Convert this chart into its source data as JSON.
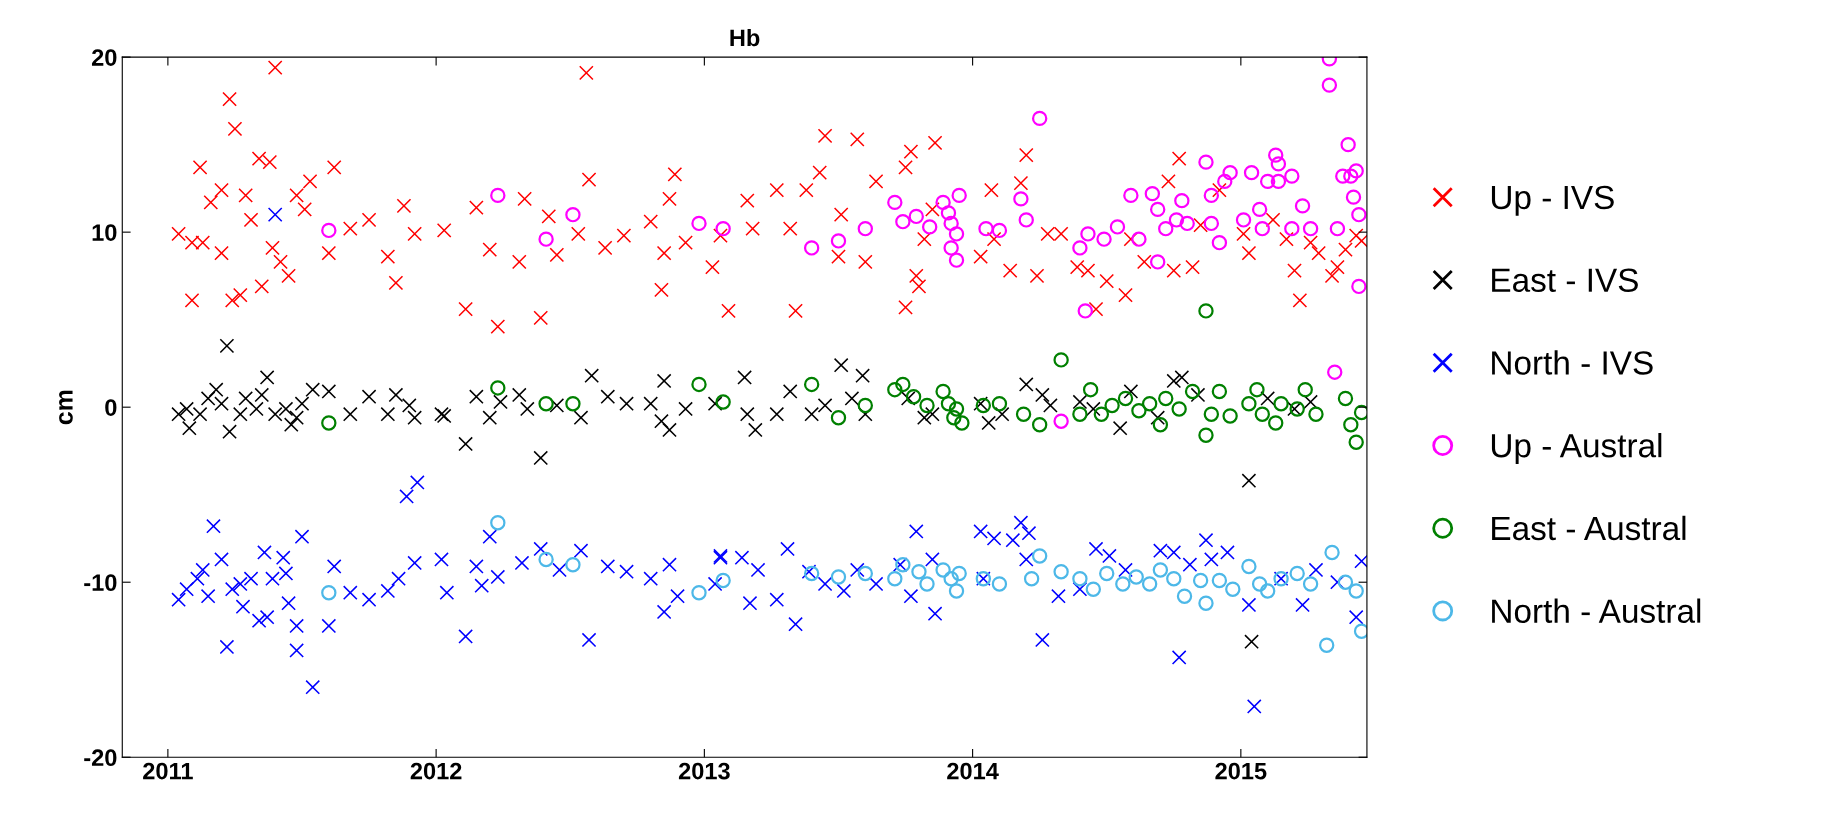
{
  "chart_data": {
    "type": "scatter",
    "title": "Hb",
    "ylabel": "cm",
    "xlim": [
      2010.83,
      2015.47
    ],
    "xticks": [
      2011,
      2012,
      2013,
      2014,
      2015
    ],
    "ylim": [
      -20,
      20
    ],
    "yticks": [
      -20,
      -10,
      0,
      10,
      20
    ],
    "grid": false,
    "legend": "right",
    "series": [
      {
        "name": "Up - IVS",
        "color": "#ff0000",
        "marker": "cross",
        "x": [
          2011.04,
          2011.09,
          2011.09,
          2011.12,
          2011.13,
          2011.16,
          2011.2,
          2011.2,
          2011.23,
          2011.25,
          2011.24,
          2011.27,
          2011.29,
          2011.31,
          2011.34,
          2011.38,
          2011.39,
          2011.35,
          2011.4,
          2011.42,
          2011.45,
          2011.48,
          2011.51,
          2011.53,
          2011.62,
          2011.6,
          2011.68,
          2011.75,
          2011.82,
          2011.85,
          2011.88,
          2011.92,
          2012.03,
          2012.11,
          2012.15,
          2012.2,
          2012.23,
          2012.33,
          2012.31,
          2012.39,
          2012.42,
          2012.45,
          2012.53,
          2012.56,
          2012.57,
          2012.63,
          2012.7,
          2012.8,
          2012.84,
          2012.85,
          2012.87,
          2012.89,
          2012.93,
          2013.03,
          2013.09,
          2013.06,
          2013.16,
          2013.18,
          2013.27,
          2013.32,
          2013.34,
          2013.38,
          2013.43,
          2013.45,
          2013.5,
          2013.51,
          2013.57,
          2013.6,
          2013.64,
          2013.75,
          2013.75,
          2013.77,
          2013.79,
          2013.8,
          2013.86,
          2013.85,
          2013.82,
          2014.03,
          2014.07,
          2014.08,
          2014.14,
          2014.18,
          2014.2,
          2014.24,
          2014.28,
          2014.33,
          2014.39,
          2014.43,
          2014.46,
          2014.5,
          2014.57,
          2014.59,
          2014.64,
          2014.73,
          2014.77,
          2014.75,
          2014.82,
          2014.85,
          2014.92,
          2015.01,
          2015.03,
          2015.12,
          2015.17,
          2015.2,
          2015.22,
          2015.26,
          2015.29,
          2015.39,
          2015.43,
          2015.45,
          2015.36,
          2015.34
        ],
        "values": [
          9.9,
          9.4,
          6.1,
          13.7,
          9.4,
          11.7,
          12.4,
          8.8,
          17.6,
          15.9,
          6.1,
          6.4,
          12.1,
          10.7,
          14.2,
          14,
          9.1,
          6.9,
          19.4,
          8.3,
          7.5,
          12.1,
          11.3,
          12.9,
          13.7,
          8.8,
          10.2,
          10.7,
          8.6,
          7.1,
          11.5,
          9.9,
          10.1,
          5.6,
          11.4,
          9,
          4.6,
          11.9,
          8.3,
          5.1,
          10.9,
          8.7,
          9.9,
          19.1,
          13,
          9.1,
          9.8,
          10.6,
          6.7,
          8.8,
          11.9,
          13.3,
          9.4,
          8,
          5.5,
          9.8,
          11.8,
          10.2,
          12.4,
          10.2,
          5.5,
          12.4,
          13.4,
          15.5,
          8.6,
          11,
          15.3,
          8.3,
          12.9,
          5.7,
          13.7,
          14.6,
          7.5,
          6.9,
          15.1,
          11.3,
          9.6,
          8.6,
          12.4,
          9.6,
          7.8,
          12.8,
          14.4,
          7.5,
          9.9,
          9.9,
          8,
          7.8,
          5.6,
          7.2,
          6.4,
          9.6,
          8.3,
          12.9,
          14.2,
          7.8,
          8,
          10.4,
          12.4,
          9.9,
          8.8,
          10.7,
          9.6,
          7.8,
          6.1,
          9.4,
          8.8,
          9,
          9.8,
          9.5,
          8,
          7.5
        ]
      },
      {
        "name": "East - IVS",
        "color": "#000000",
        "marker": "cross",
        "x": [
          2011.04,
          2011.07,
          2011.08,
          2011.12,
          2011.15,
          2011.18,
          2011.2,
          2011.22,
          2011.23,
          2011.27,
          2011.29,
          2011.33,
          2011.35,
          2011.37,
          2011.4,
          2011.44,
          2011.46,
          2011.48,
          2011.5,
          2011.54,
          2011.6,
          2011.68,
          2011.75,
          2011.82,
          2011.85,
          2011.9,
          2011.92,
          2012.02,
          2012.03,
          2012.11,
          2012.15,
          2012.2,
          2012.24,
          2012.31,
          2012.34,
          2012.39,
          2012.45,
          2012.54,
          2012.58,
          2012.64,
          2012.71,
          2012.8,
          2012.85,
          2012.84,
          2012.87,
          2012.93,
          2013.04,
          2013.15,
          2013.19,
          2013.16,
          2013.27,
          2013.32,
          2013.4,
          2013.45,
          2013.51,
          2013.55,
          2013.59,
          2013.6,
          2013.76,
          2013.82,
          2013.85,
          2014.03,
          2014.06,
          2014.11,
          2014.2,
          2014.26,
          2014.29,
          2014.4,
          2014.45,
          2014.55,
          2014.59,
          2014.69,
          2014.75,
          2014.78,
          2014.84,
          2015.03,
          2015.04,
          2015.1,
          2015.2,
          2015.26
        ],
        "values": [
          -0.4,
          -0.1,
          -1.2,
          -0.4,
          0.5,
          1,
          0.2,
          3.5,
          -1.4,
          -0.4,
          0.5,
          -0.1,
          0.7,
          1.7,
          -0.4,
          -0.1,
          -1,
          -0.6,
          0.2,
          1,
          0.9,
          -0.4,
          0.6,
          -0.4,
          0.7,
          0.1,
          -0.6,
          -0.4,
          -0.5,
          -2.1,
          0.6,
          -0.6,
          0.3,
          0.7,
          -0.1,
          -2.9,
          0.1,
          -0.6,
          1.8,
          0.6,
          0.2,
          0.2,
          1.5,
          -0.8,
          -1.3,
          -0.1,
          0.2,
          1.7,
          -1.3,
          -0.4,
          -0.4,
          0.9,
          -0.4,
          0.1,
          2.4,
          0.5,
          1.8,
          -0.4,
          0.5,
          -0.6,
          -0.4,
          0.2,
          -0.9,
          -0.4,
          1.3,
          0.7,
          0.1,
          0.3,
          -0.1,
          -1.2,
          0.9,
          -0.6,
          1.5,
          1.7,
          0.7,
          -4.2,
          -13.4,
          0.5,
          -0.1,
          0.3
        ]
      },
      {
        "name": "North - IVS",
        "color": "#0000ff",
        "marker": "cross",
        "x": [
          2011.04,
          2011.07,
          2011.11,
          2011.13,
          2011.17,
          2011.15,
          2011.2,
          2011.22,
          2011.24,
          2011.27,
          2011.28,
          2011.31,
          2011.34,
          2011.36,
          2011.37,
          2011.39,
          2011.4,
          2011.43,
          2011.44,
          2011.45,
          2011.48,
          2011.48,
          2011.5,
          2011.54,
          2011.6,
          2011.62,
          2011.68,
          2011.75,
          2011.82,
          2011.86,
          2011.89,
          2011.93,
          2011.92,
          2012.02,
          2012.04,
          2012.11,
          2012.15,
          2012.2,
          2012.17,
          2012.23,
          2012.32,
          2012.39,
          2012.46,
          2012.54,
          2012.57,
          2012.64,
          2012.71,
          2012.8,
          2012.85,
          2012.87,
          2012.9,
          2013.06,
          2013.04,
          2013.06,
          2013.14,
          2013.17,
          2013.2,
          2013.27,
          2013.31,
          2013.34,
          2013.39,
          2013.45,
          2013.52,
          2013.57,
          2013.64,
          2013.73,
          2013.79,
          2013.77,
          2013.86,
          2013.85,
          2014.03,
          2014.08,
          2014.04,
          2014.15,
          2014.18,
          2014.21,
          2014.2,
          2014.26,
          2014.32,
          2014.4,
          2014.46,
          2014.51,
          2014.57,
          2014.7,
          2014.75,
          2014.77,
          2014.81,
          2014.87,
          2014.89,
          2014.95,
          2015.03,
          2015.05,
          2015.15,
          2015.23,
          2015.28,
          2015.43,
          2015.45,
          2015.36
        ],
        "values": [
          -11,
          -10.4,
          -9.8,
          -9.3,
          -6.8,
          -10.8,
          -8.7,
          -13.7,
          -10.4,
          -10.1,
          -11.4,
          -9.8,
          -12.2,
          -8.3,
          -12,
          -9.8,
          11,
          -8.6,
          -9.5,
          -11.2,
          -12.5,
          -13.9,
          -7.4,
          -16,
          -12.5,
          -9.1,
          -10.6,
          -11,
          -10.5,
          -9.8,
          -5.1,
          -4.3,
          -8.9,
          -8.7,
          -10.6,
          -13.1,
          -9.1,
          -7.4,
          -10.2,
          -9.7,
          -8.9,
          -8.1,
          -9.3,
          -8.2,
          -13.3,
          -9.1,
          -9.4,
          -9.8,
          -11.7,
          -9,
          -10.8,
          -8.6,
          -10.1,
          -8.5,
          -8.6,
          -11.2,
          -9.3,
          -11,
          -8.1,
          -12.4,
          -9.4,
          -10.1,
          -10.5,
          -9.3,
          -10.1,
          -9,
          -7.1,
          -10.8,
          -11.8,
          -8.7,
          -7.1,
          -7.5,
          -9.8,
          -7.6,
          -6.6,
          -7.2,
          -8.7,
          -13.3,
          -10.8,
          -10.4,
          -8.1,
          -8.5,
          -9.3,
          -8.2,
          -8.3,
          -14.3,
          -9,
          -7.6,
          -8.7,
          -8.3,
          -11.3,
          -17.1,
          -9.8,
          -11.3,
          -9.3,
          -12,
          -8.8,
          -10
        ]
      },
      {
        "name": "Up - Austral",
        "color": "#ff00ff",
        "marker": "circle",
        "x": [
          2011.6,
          2012.23,
          2012.41,
          2012.51,
          2012.98,
          2013.07,
          2013.4,
          2013.5,
          2013.6,
          2013.71,
          2013.74,
          2013.79,
          2013.84,
          2013.89,
          2013.91,
          2013.92,
          2013.94,
          2013.92,
          2013.94,
          2013.95,
          2014.05,
          2014.1,
          2014.18,
          2014.2,
          2014.25,
          2014.33,
          2014.4,
          2014.42,
          2014.43,
          2014.49,
          2014.54,
          2014.59,
          2014.62,
          2014.67,
          2014.69,
          2014.69,
          2014.72,
          2014.76,
          2014.78,
          2014.8,
          2014.87,
          2014.89,
          2014.89,
          2014.92,
          2014.94,
          2014.96,
          2015.01,
          2015.04,
          2015.07,
          2015.08,
          2015.1,
          2015.13,
          2015.14,
          2015.14,
          2015.19,
          2015.19,
          2015.23,
          2015.26,
          2015.33,
          2015.33,
          2015.35,
          2015.4,
          2015.41,
          2015.42,
          2015.43,
          2015.44,
          2015.44,
          2015.38,
          2015.36
        ],
        "values": [
          10.1,
          12.1,
          9.6,
          11,
          10.5,
          10.2,
          9.1,
          9.5,
          10.2,
          11.7,
          10.6,
          10.9,
          10.3,
          11.7,
          11.1,
          10.5,
          9.9,
          9.1,
          8.4,
          12.1,
          10.2,
          10.1,
          11.9,
          10.7,
          16.5,
          -0.8,
          9.1,
          5.5,
          9.9,
          9.6,
          10.3,
          12.1,
          9.6,
          12.2,
          11.3,
          8.3,
          10.2,
          10.7,
          11.8,
          10.5,
          14,
          12.1,
          10.5,
          9.4,
          12.9,
          13.4,
          10.7,
          13.4,
          11.3,
          10.2,
          12.9,
          14.4,
          13.9,
          12.9,
          13.2,
          10.2,
          11.5,
          10.2,
          19.9,
          18.4,
          2,
          15,
          13.2,
          12,
          13.5,
          11,
          6.9,
          13.2,
          10.2
        ]
      },
      {
        "name": "East - Austral",
        "color": "#008000",
        "marker": "circle",
        "x": [
          2011.6,
          2012.23,
          2012.41,
          2012.51,
          2012.98,
          2013.07,
          2013.4,
          2013.5,
          2013.6,
          2013.71,
          2013.74,
          2013.78,
          2013.83,
          2013.89,
          2013.91,
          2013.93,
          2013.94,
          2013.96,
          2014.04,
          2014.1,
          2014.19,
          2014.25,
          2014.33,
          2014.4,
          2014.44,
          2014.48,
          2014.52,
          2014.57,
          2014.62,
          2014.66,
          2014.7,
          2014.72,
          2014.77,
          2014.82,
          2014.87,
          2014.87,
          2014.89,
          2014.92,
          2014.96,
          2015.03,
          2015.06,
          2015.08,
          2015.13,
          2015.15,
          2015.21,
          2015.24,
          2015.28,
          2015.41,
          2015.43,
          2015.45,
          2015.39
        ],
        "values": [
          -0.9,
          1.1,
          0.2,
          0.2,
          1.3,
          0.3,
          1.3,
          -0.6,
          0.1,
          1,
          1.3,
          0.6,
          0.1,
          0.9,
          0.2,
          -0.6,
          -0.1,
          -0.9,
          0.1,
          0.2,
          -0.4,
          -1,
          2.7,
          -0.4,
          1,
          -0.4,
          0.1,
          0.5,
          -0.2,
          0.2,
          -1,
          0.5,
          -0.1,
          0.9,
          5.5,
          -1.6,
          -0.4,
          0.9,
          -0.5,
          0.2,
          1,
          -0.4,
          -0.9,
          0.2,
          -0.1,
          1,
          -0.4,
          -1,
          -2,
          -0.3,
          0.5
        ]
      },
      {
        "name": "North - Austral",
        "color": "#4db8e8",
        "marker": "circle",
        "x": [
          2011.6,
          2012.23,
          2012.41,
          2012.51,
          2012.98,
          2013.07,
          2013.4,
          2013.5,
          2013.6,
          2013.71,
          2013.74,
          2013.8,
          2013.83,
          2013.89,
          2013.92,
          2013.94,
          2013.95,
          2014.04,
          2014.1,
          2014.22,
          2014.25,
          2014.33,
          2014.4,
          2014.45,
          2014.5,
          2014.56,
          2014.61,
          2014.66,
          2014.7,
          2014.75,
          2014.79,
          2014.85,
          2014.87,
          2014.92,
          2014.97,
          2015.03,
          2015.07,
          2015.1,
          2015.15,
          2015.21,
          2015.26,
          2015.32,
          2015.34,
          2015.43,
          2015.45,
          2015.39
        ],
        "values": [
          -10.6,
          -6.6,
          -8.7,
          -9,
          -10.6,
          -9.9,
          -9.5,
          -9.7,
          -9.5,
          -9.8,
          -9,
          -9.4,
          -10.1,
          -9.3,
          -9.8,
          -10.5,
          -9.5,
          -9.8,
          -10.1,
          -9.8,
          -8.5,
          -9.4,
          -9.8,
          -10.4,
          -9.5,
          -10.1,
          -9.7,
          -10.1,
          -9.3,
          -9.8,
          -10.8,
          -9.9,
          -11.2,
          -9.9,
          -10.4,
          -9.1,
          -10.1,
          -10.5,
          -9.8,
          -9.5,
          -10.1,
          -13.6,
          -8.3,
          -10.5,
          -12.8,
          -10
        ]
      }
    ]
  }
}
